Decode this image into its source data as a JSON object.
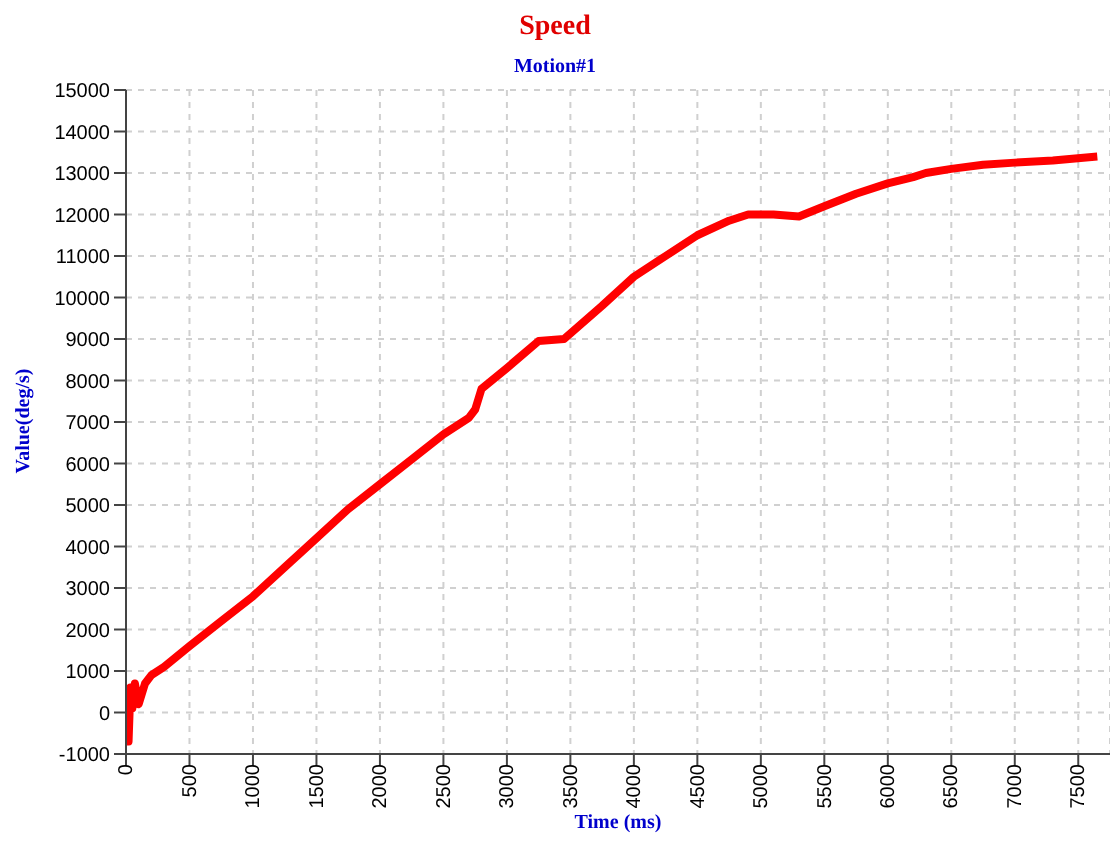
{
  "chart_data": {
    "type": "line",
    "title": "Speed",
    "subtitle": "Motion#1",
    "xlabel": "Time (ms)",
    "ylabel": "Value(deg/s)",
    "x": [
      0,
      20,
      35,
      50,
      70,
      100,
      150,
      200,
      300,
      500,
      750,
      1000,
      1250,
      1500,
      1750,
      2000,
      2250,
      2500,
      2700,
      2750,
      2800,
      3000,
      3250,
      3450,
      3750,
      4000,
      4250,
      4500,
      4750,
      4900,
      5100,
      5300,
      5500,
      5750,
      6000,
      6200,
      6300,
      6500,
      6750,
      7000,
      7300,
      7650
    ],
    "series": [
      {
        "color": "#ff0000",
        "values": [
          0,
          -700,
          600,
          100,
          700,
          200,
          700,
          900,
          1100,
          1600,
          2200,
          2800,
          3500,
          4200,
          4900,
          5500,
          6100,
          6700,
          7100,
          7300,
          7800,
          8300,
          8950,
          9000,
          9800,
          10500,
          11000,
          11500,
          11850,
          12000,
          12000,
          11950,
          12200,
          12500,
          12750,
          12900,
          13000,
          13100,
          13200,
          13250,
          13300,
          13400
        ]
      }
    ],
    "xlim": [
      0,
      7750
    ],
    "xticks": [
      0,
      500,
      1000,
      1500,
      2000,
      2500,
      3000,
      3500,
      4000,
      4500,
      5000,
      5500,
      6000,
      6500,
      7000,
      7500
    ],
    "ylim": [
      -1000,
      15000
    ],
    "yticks": [
      -1000,
      0,
      1000,
      2000,
      3000,
      4000,
      5000,
      6000,
      7000,
      8000,
      9000,
      10000,
      11000,
      12000,
      13000,
      14000,
      15000
    ],
    "grid": true,
    "legend": false,
    "marker": "none",
    "line_style": "solid"
  }
}
